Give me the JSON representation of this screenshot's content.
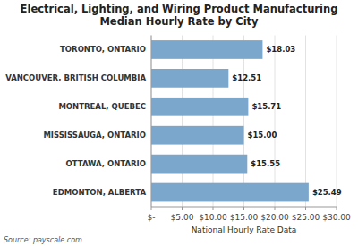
{
  "chart_data": {
    "type": "bar",
    "orientation": "horizontal",
    "title": "Electrical, Lighting, and Wiring Product Manufacturing\nMedian Hourly Rate by City",
    "x_label": "National Hourly Rate Data",
    "annotations": [
      "Source: payscale.com"
    ],
    "categories": [
      "TORONTO, ONTARIO",
      "VANCOUVER, BRITISH COLUMBIA",
      "MONTREAL, QUEBEC",
      "MISSISSAUGA, ONTARIO",
      "OTTAWA, ONTARIO",
      "EDMONTON, ALBERTA"
    ],
    "values": [
      18.03,
      12.51,
      15.71,
      15.0,
      15.55,
      25.49
    ],
    "value_labels": [
      "$18.03",
      "$12.51",
      "$15.71",
      "$15.00",
      "$15.55",
      "$25.49"
    ],
    "data_labels": true,
    "color": "#7BA7CC",
    "xlim": [
      0,
      30
    ],
    "xticks": [
      {
        "value": 0,
        "label": "$-"
      },
      {
        "value": 5,
        "label": "$5.00"
      },
      {
        "value": 10,
        "label": "$10.00"
      },
      {
        "value": 15,
        "label": "$15.00"
      },
      {
        "value": 20,
        "label": "$20.00"
      },
      {
        "value": 25,
        "label": "$25.00"
      },
      {
        "value": 30,
        "label": "$30.00"
      }
    ],
    "grid": true
  }
}
